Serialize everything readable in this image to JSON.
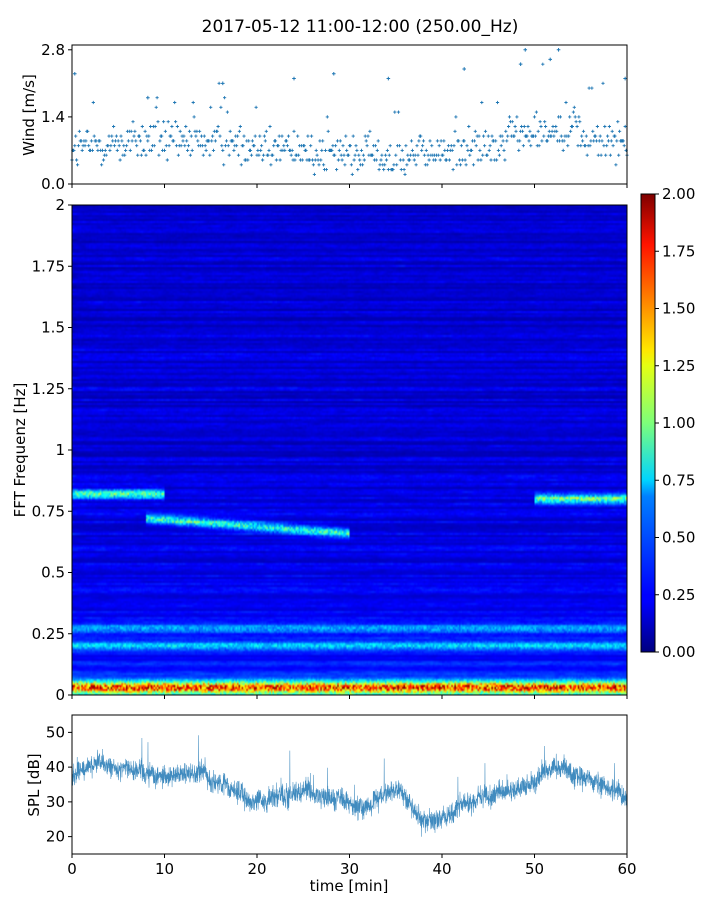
{
  "title": "2017-05-12 11:00-12:00 (250.00_Hz)",
  "colors": {
    "series": "#1f77b4",
    "colormap": "jet"
  },
  "chart_data": [
    {
      "type": "scatter",
      "name": "wind",
      "ylabel": "Wind [m/s]",
      "xlim": [
        0,
        60
      ],
      "ylim": [
        0,
        2.9
      ],
      "yticks": [
        "0.0",
        "1.4",
        "2.8"
      ],
      "marker": "+",
      "sampling_step_min": 0.1,
      "quantization_step": 0.1,
      "levels_hint": "values spread mostly between 0.1 and 1.8 m/s, denser around 0.4-1.2, gusts up to 2.8 m/s near 48-53 min",
      "gust_samples": [
        {
          "x": 0.3,
          "y": 2.3
        },
        {
          "x": 8.2,
          "y": 1.8
        },
        {
          "x": 16.3,
          "y": 2.1
        },
        {
          "x": 24.0,
          "y": 2.2
        },
        {
          "x": 28.3,
          "y": 2.3
        },
        {
          "x": 34.2,
          "y": 2.2
        },
        {
          "x": 42.4,
          "y": 2.4
        },
        {
          "x": 48.5,
          "y": 2.5
        },
        {
          "x": 49.0,
          "y": 2.8
        },
        {
          "x": 51.7,
          "y": 2.6
        },
        {
          "x": 52.6,
          "y": 2.8
        },
        {
          "x": 59.8,
          "y": 2.2
        }
      ]
    },
    {
      "type": "heatmap",
      "name": "spectrogram",
      "ylabel": "FFT Frequenz [Hz]",
      "xlim": [
        0,
        60
      ],
      "ylim": [
        0,
        2
      ],
      "yticks": [
        "0",
        "0.25",
        "0.5",
        "0.75",
        "1",
        "1.25",
        "1.5",
        "1.75",
        "2"
      ],
      "colorbar": {
        "min": 0,
        "max": 2,
        "ticks": [
          "0.00",
          "0.25",
          "0.50",
          "0.75",
          "1.00",
          "1.25",
          "1.50",
          "1.75",
          "2.00"
        ],
        "colormap": "jet"
      },
      "features": [
        {
          "label": "low frequency band",
          "freq_hz": 0.03,
          "intensity": 1.6
        },
        {
          "label": "tonal ridge early",
          "t_start_min": 0,
          "t_end_min": 10,
          "freq_hz": 0.82,
          "intensity": 0.85
        },
        {
          "label": "tonal ridge falling",
          "t_start_min": 8,
          "t_end_min": 30,
          "freq_start_hz": 0.72,
          "freq_end_hz": 0.66,
          "intensity": 0.8
        },
        {
          "label": "tonal ridge late",
          "t_start_min": 50,
          "t_end_min": 60,
          "freq_hz": 0.8,
          "intensity": 0.9
        },
        {
          "label": "band near 0.2 Hz",
          "freq_hz": 0.2,
          "intensity": 0.45
        },
        {
          "label": "band near 0.27 Hz",
          "freq_hz": 0.27,
          "intensity": 0.4
        }
      ],
      "background_level": 0.15
    },
    {
      "type": "line",
      "name": "spl",
      "xlabel": "time [min]",
      "ylabel": "SPL [dB]",
      "xlim": [
        0,
        60
      ],
      "ylim": [
        15,
        55
      ],
      "xticks": [
        "0",
        "10",
        "20",
        "30",
        "40",
        "50",
        "60"
      ],
      "yticks": [
        "20",
        "30",
        "40",
        "50"
      ],
      "noise_amplitude_db": 3,
      "envelope": {
        "x": [
          0,
          2,
          4,
          6,
          8,
          10,
          12,
          14,
          15,
          17,
          19,
          21,
          23,
          25,
          27,
          29,
          30,
          31,
          33,
          35,
          36,
          37,
          38,
          40,
          42,
          44,
          46,
          48,
          50,
          51,
          52,
          54,
          56,
          58,
          60
        ],
        "y": [
          38,
          40,
          41,
          40,
          39,
          37,
          38,
          40,
          35,
          34,
          31,
          30,
          32,
          33,
          32,
          31,
          29,
          28,
          30,
          33,
          31,
          27,
          24,
          26,
          29,
          31,
          32,
          33,
          36,
          39,
          40,
          38,
          37,
          35,
          32
        ]
      }
    }
  ]
}
